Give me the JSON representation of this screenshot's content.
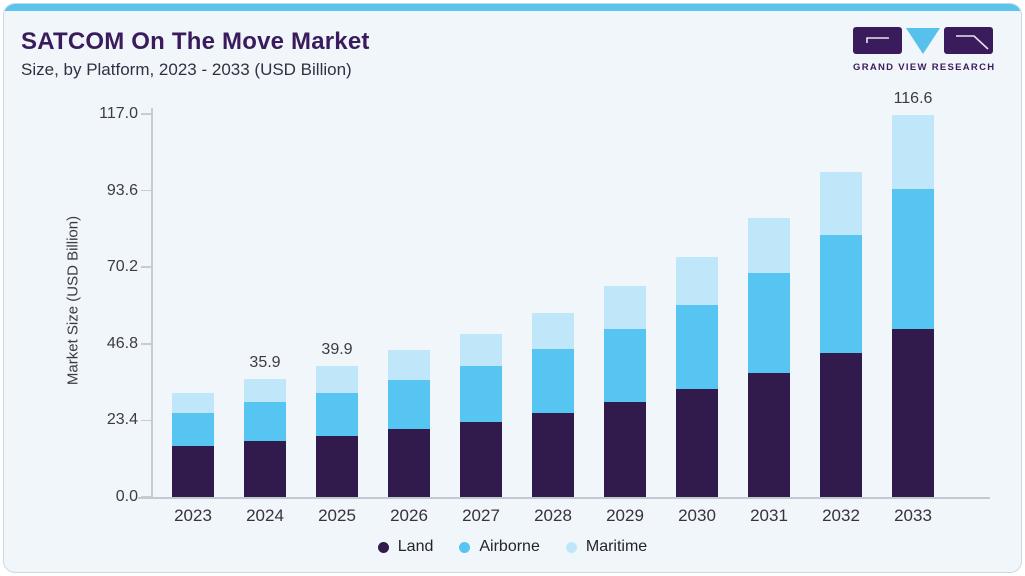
{
  "header": {
    "title": "SATCOM On The Move Market",
    "subtitle": "Size, by Platform, 2023 - 2033 (USD Billion)"
  },
  "logo": {
    "brand": "GRAND VIEW RESEARCH"
  },
  "colors": {
    "accent_strip": "#5bc4ec",
    "land": "#311b4d",
    "airborne": "#56c5f1",
    "maritime": "#c0e7f9",
    "title_purple": "#3a1c5c",
    "axis_line": "#c5ccd4"
  },
  "chart_data": {
    "type": "bar",
    "stacked": true,
    "title": "SATCOM On The Move Market Size, by Platform, 2023 - 2033 (USD Billion)",
    "categories": [
      "2023",
      "2024",
      "2025",
      "2026",
      "2027",
      "2028",
      "2029",
      "2030",
      "2031",
      "2032",
      "2033"
    ],
    "series": [
      {
        "name": "Land",
        "color_key": "land",
        "values": [
          15.5,
          17.2,
          18.6,
          20.7,
          22.9,
          25.7,
          29.1,
          33.1,
          37.8,
          44.0,
          51.4
        ]
      },
      {
        "name": "Airborne",
        "color_key": "airborne",
        "values": [
          10.2,
          11.9,
          13.3,
          14.9,
          17.0,
          19.5,
          22.3,
          25.7,
          30.6,
          35.9,
          42.8
        ]
      },
      {
        "name": "Maritime",
        "color_key": "maritime",
        "values": [
          6.2,
          6.8,
          8.0,
          9.3,
          9.9,
          11.1,
          13.0,
          14.6,
          16.7,
          19.5,
          22.4
        ]
      }
    ],
    "totals": [
      31.9,
      35.9,
      39.9,
      44.9,
      49.8,
      56.3,
      64.4,
      73.4,
      85.1,
      99.4,
      116.6
    ],
    "bar_labels": [
      "",
      "35.9",
      "39.9",
      "",
      "",
      "",
      "",
      "",
      "",
      "",
      "116.6"
    ],
    "ylabel": "Market Size (USD Billion)",
    "xlabel": "",
    "yticks": [
      0.0,
      23.4,
      46.8,
      70.2,
      93.6,
      117.0
    ],
    "ytick_labels": [
      "0.0",
      "23.4",
      "46.8",
      "70.2",
      "93.6",
      "117.0"
    ],
    "ylim": [
      0,
      117
    ],
    "grid": false,
    "legend_position": "bottom"
  }
}
